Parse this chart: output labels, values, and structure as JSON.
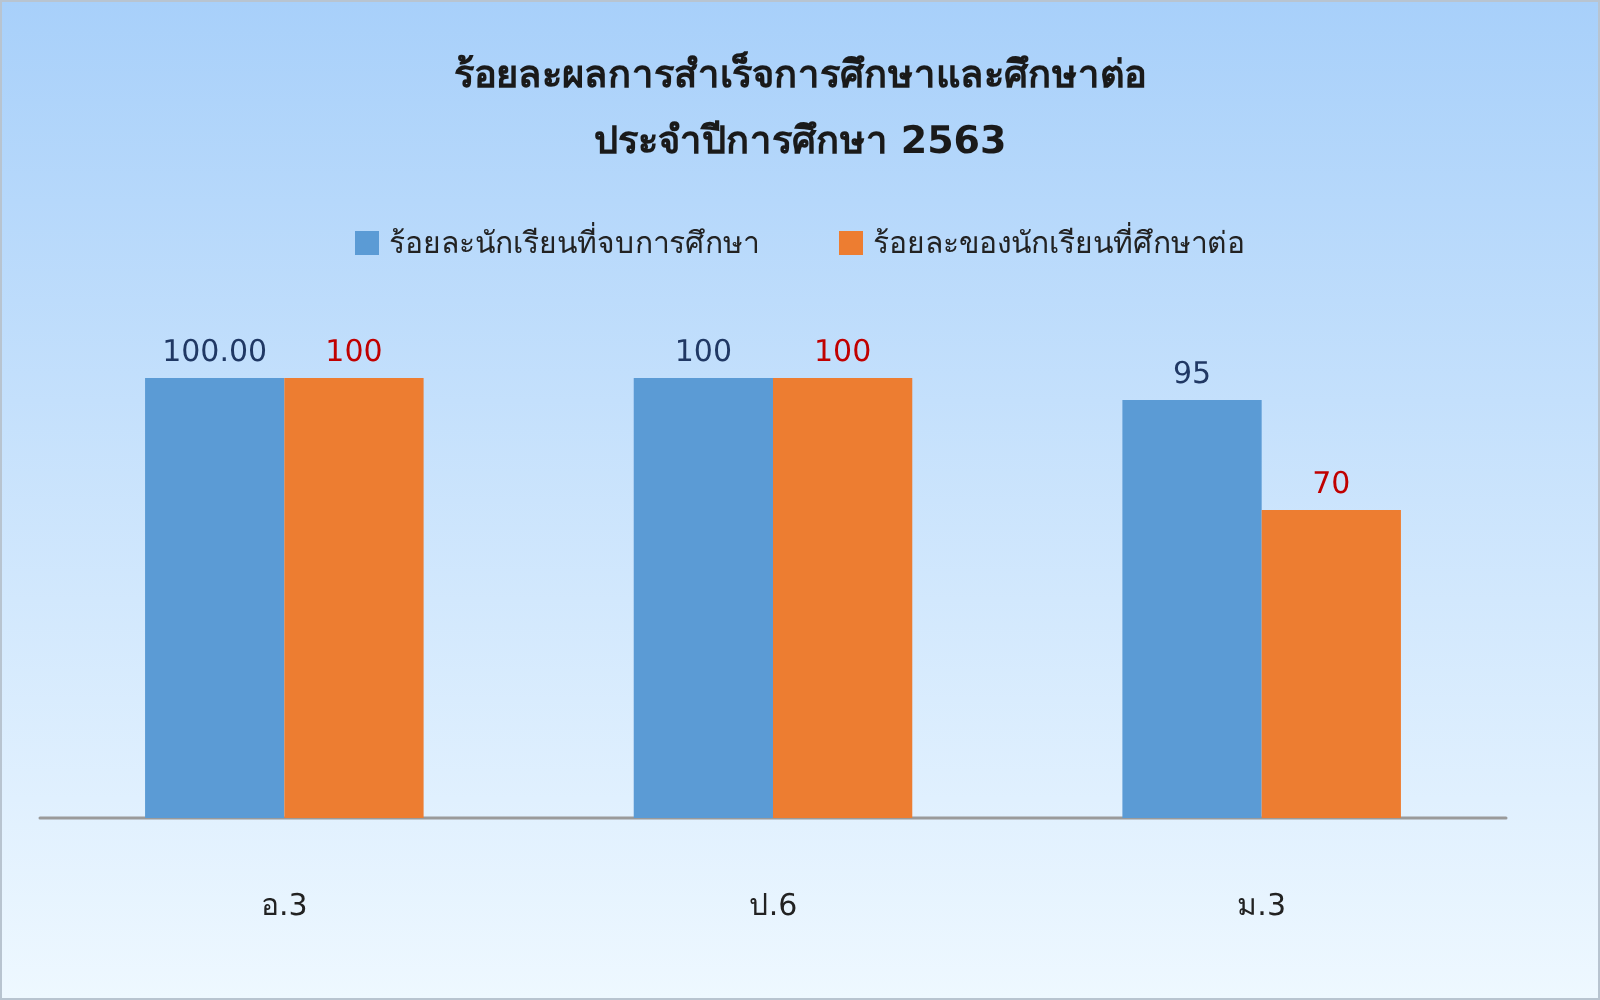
{
  "chart_data": {
    "type": "bar",
    "title": "ร้อยละผลการสำเร็จการศึกษาและศึกษาต่อ",
    "subtitle": "ประจำปีการศึกษา 2563",
    "categories": [
      "อ.3",
      "ป.6",
      "ม.3"
    ],
    "series": [
      {
        "name": "ร้อยละนักเรียนที่จบการศึกษา",
        "color": "#5b9bd5",
        "values": [
          100,
          100,
          95
        ],
        "value_labels": [
          "100.00",
          "100",
          "95"
        ]
      },
      {
        "name": "ร้อยละของนักเรียนที่ศึกษาต่อ",
        "color": "#ed7d31",
        "values": [
          100,
          100,
          70
        ],
        "value_labels": [
          "100",
          "100",
          "70"
        ]
      }
    ],
    "legend": "top"
  }
}
